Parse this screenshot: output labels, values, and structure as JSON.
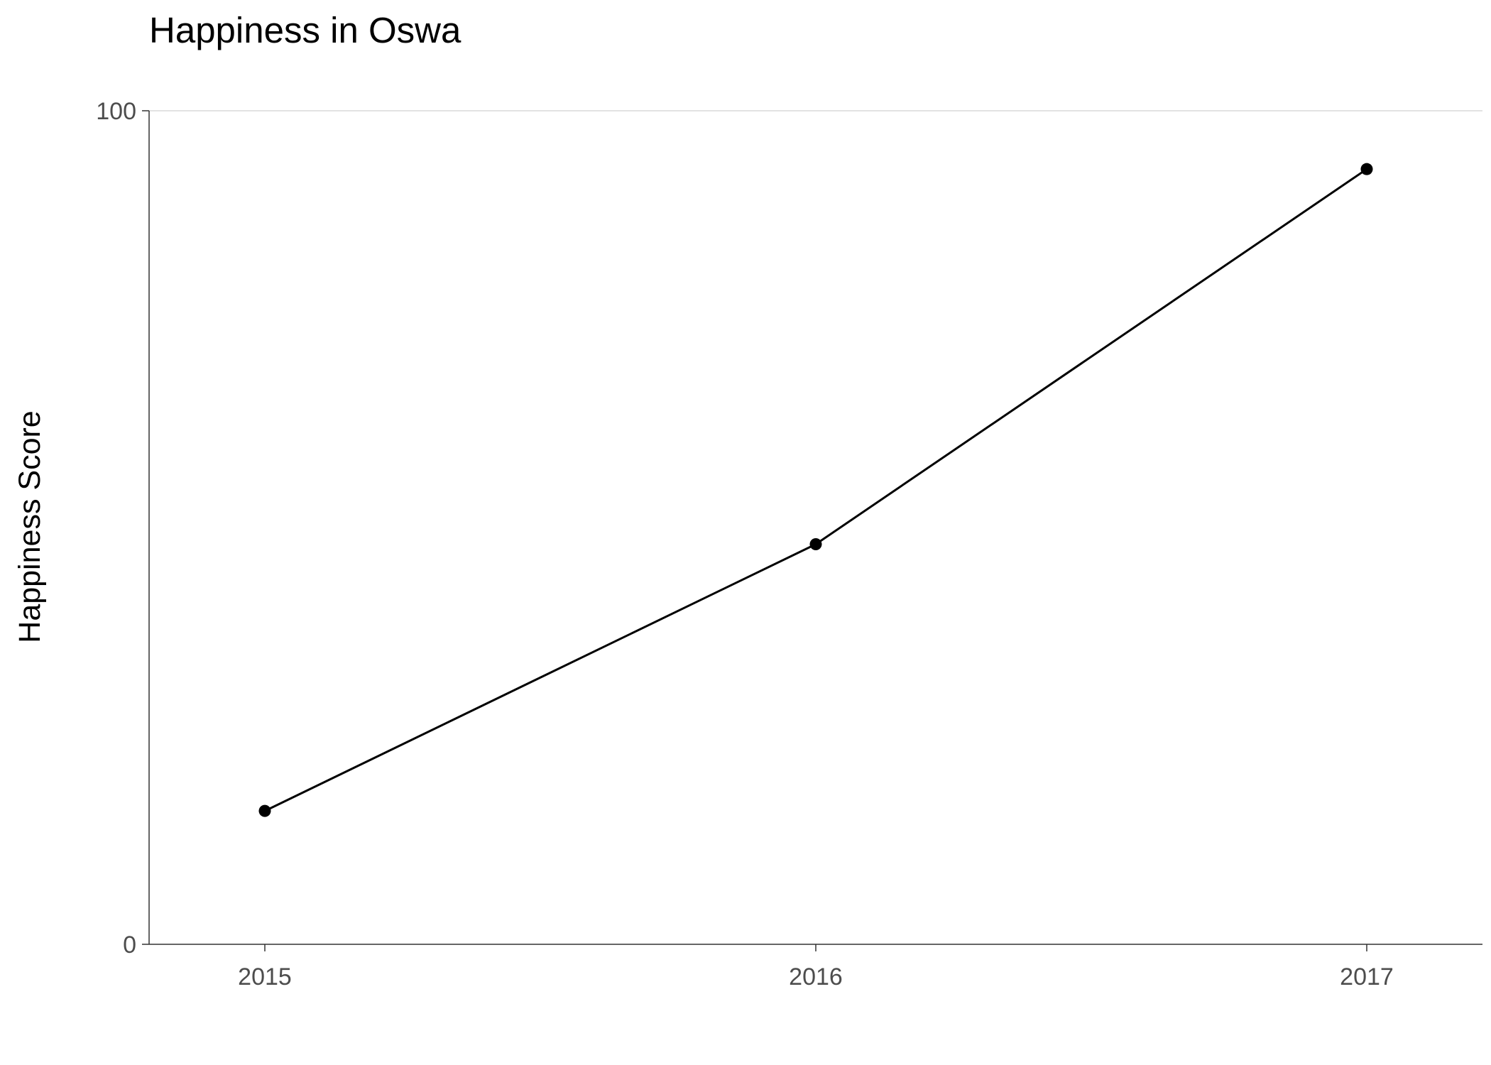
{
  "chart_data": {
    "type": "line",
    "title": "Happiness in Oswa",
    "xlabel": "",
    "ylabel": "Happiness Score",
    "x": [
      "2015",
      "2016",
      "2017"
    ],
    "series": [
      {
        "values": [
          16,
          48,
          93
        ]
      }
    ],
    "ylim": [
      0,
      100
    ],
    "yticks": [
      "0",
      "100"
    ],
    "grid": "horizontal major lines only",
    "legend": "none",
    "colors": {
      "line": "#000000",
      "point": "#000000",
      "grid": "#d9d9d9",
      "axis": "#333333"
    }
  }
}
